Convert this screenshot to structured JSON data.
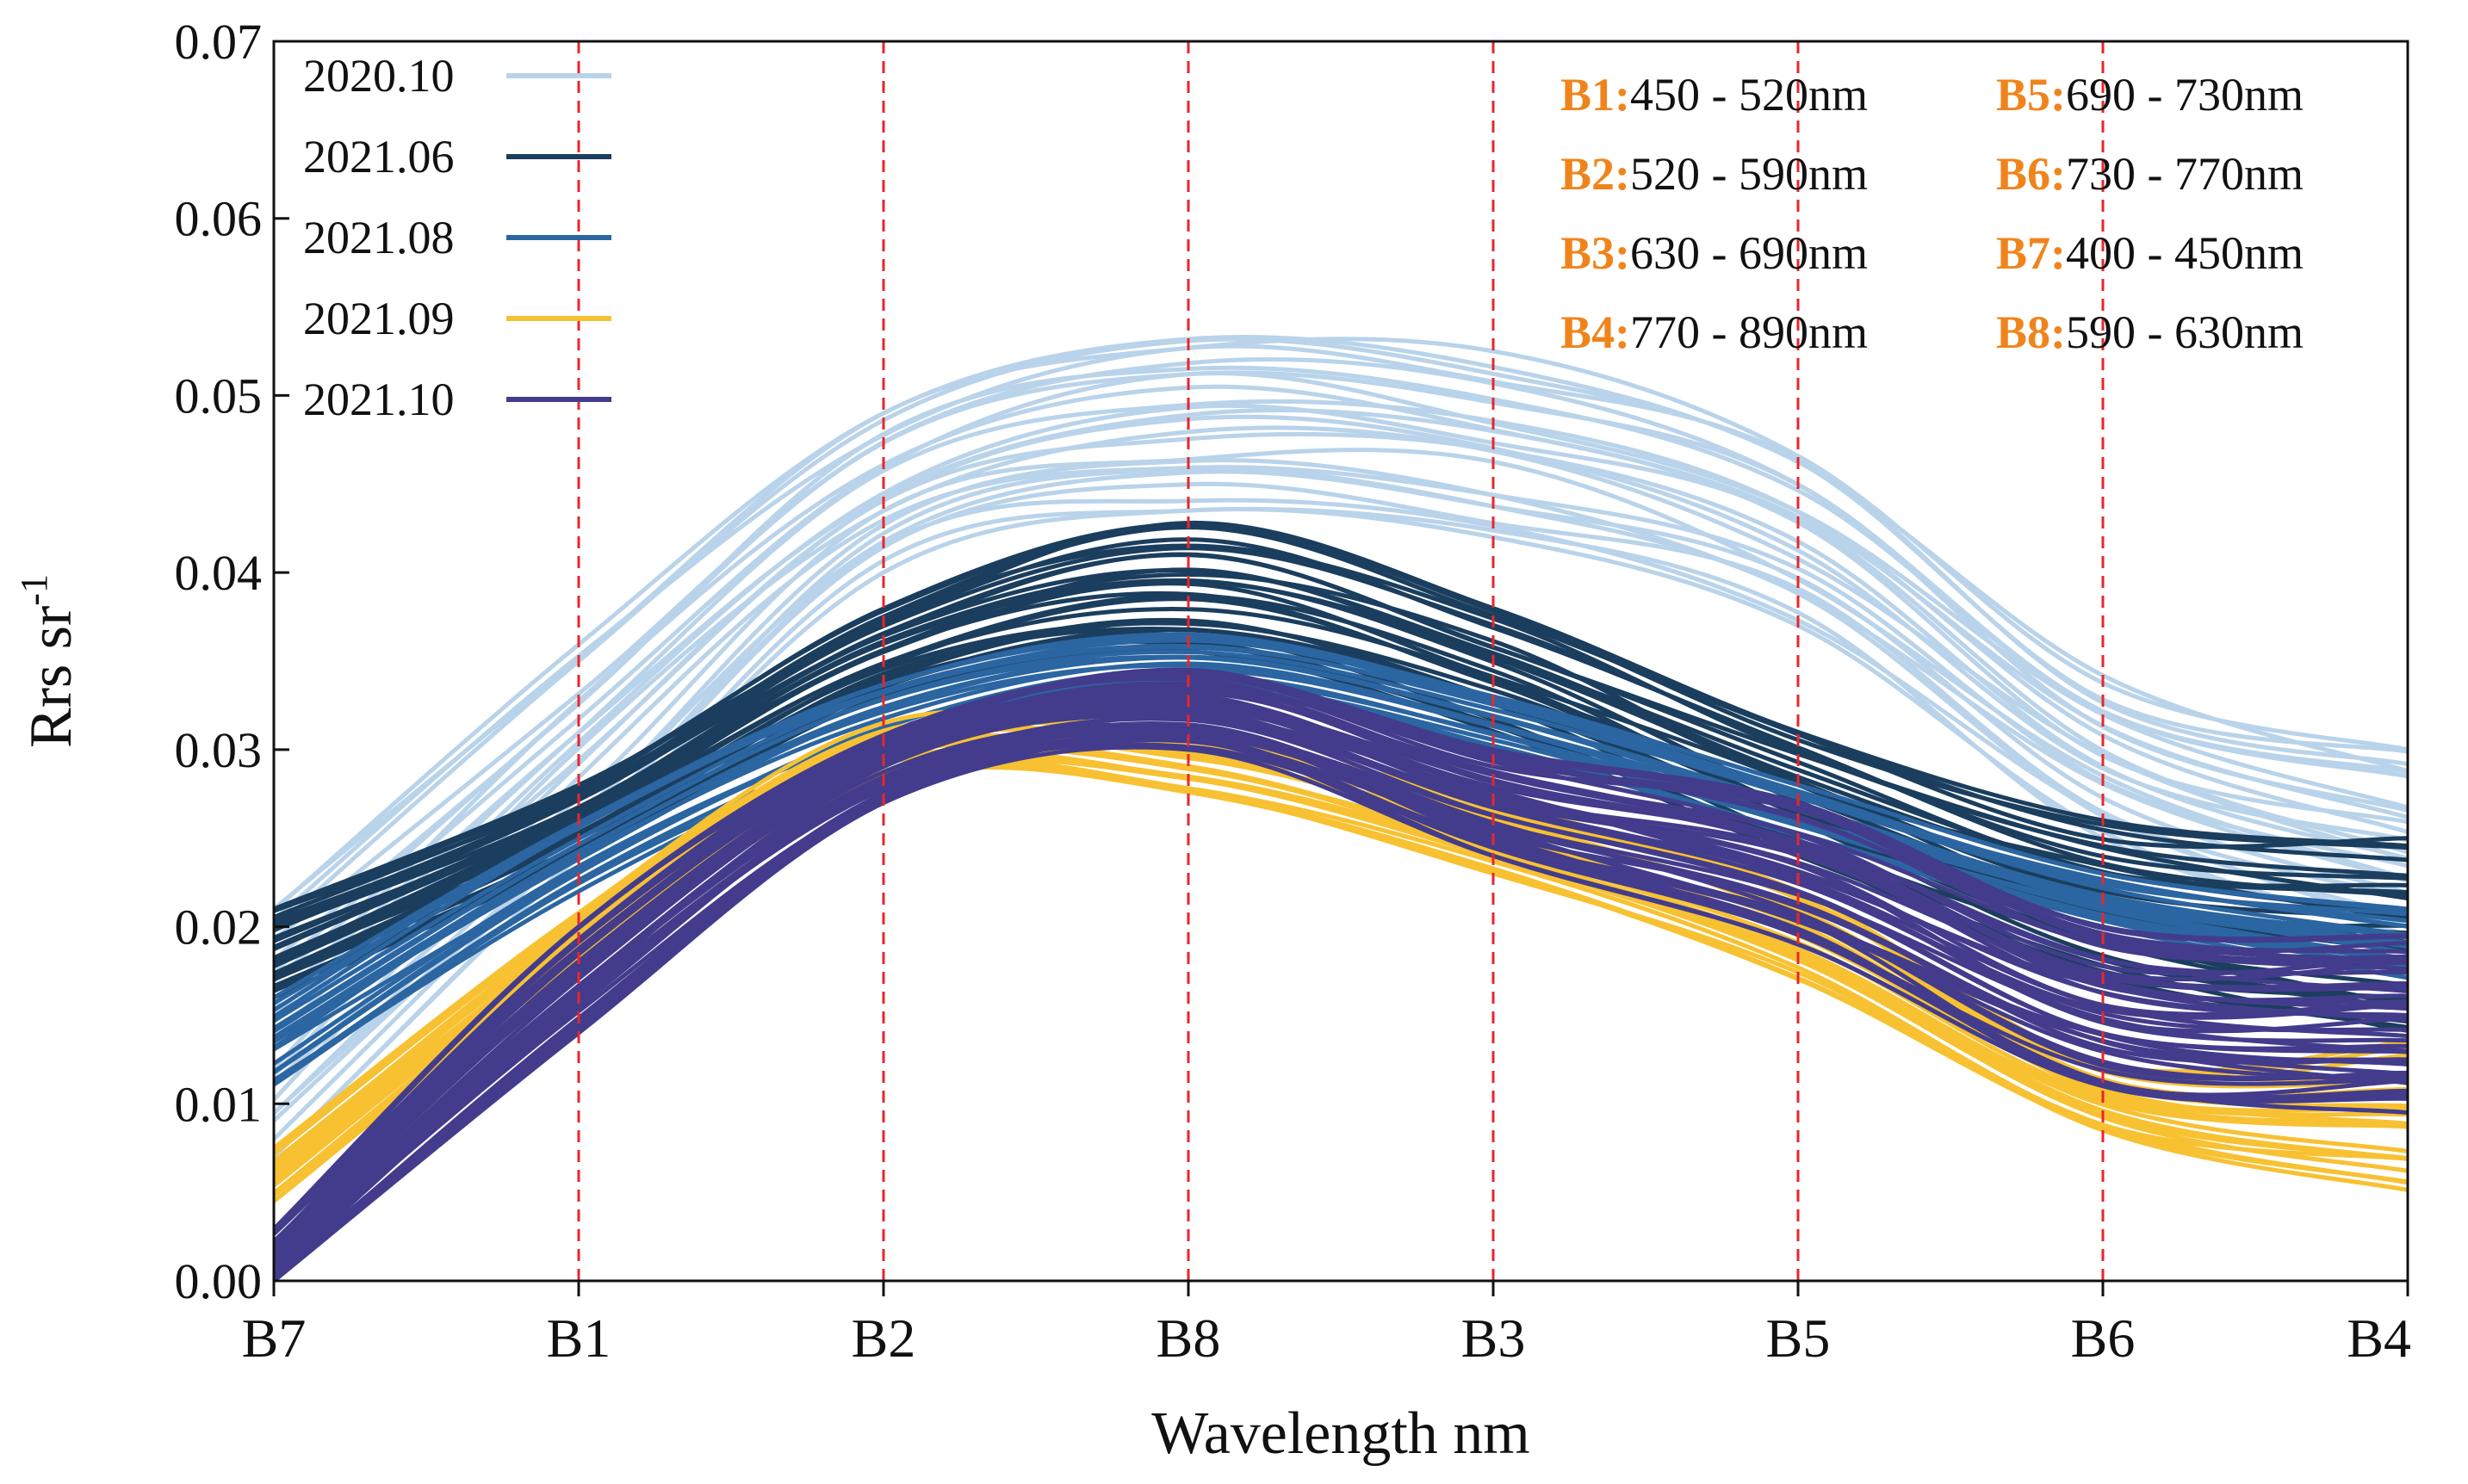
{
  "chart_data": {
    "type": "line",
    "title": "",
    "xlabel": "Wavelength nm",
    "ylabel": "Rrs sr",
    "ylabel_superscript": "-1",
    "categories": [
      "B7",
      "B1",
      "B2",
      "B8",
      "B3",
      "B5",
      "B6",
      "B4"
    ],
    "ylim": [
      0,
      0.07
    ],
    "yticks": [
      "0.00",
      "0.01",
      "0.02",
      "0.03",
      "0.04",
      "0.05",
      "0.06",
      "0.07"
    ],
    "grid": false,
    "reference_lines": [
      "B1",
      "B2",
      "B8",
      "B3",
      "B5",
      "B6"
    ],
    "legend_position": "top-left",
    "series": [
      {
        "name": "2020.10",
        "color": "#b9d3ea",
        "line_count": 24,
        "values_min": [
          0.007,
          0.024,
          0.04,
          0.0435,
          0.042,
          0.037,
          0.025,
          0.0195
        ],
        "values_max": [
          0.021,
          0.036,
          0.049,
          0.0535,
          0.0525,
          0.047,
          0.0345,
          0.03
        ]
      },
      {
        "name": "2021.06",
        "color": "#1b3e5e",
        "line_count": 30,
        "values_min": [
          0.016,
          0.024,
          0.033,
          0.0355,
          0.031,
          0.024,
          0.017,
          0.0135
        ],
        "values_max": [
          0.021,
          0.028,
          0.038,
          0.0428,
          0.038,
          0.031,
          0.026,
          0.025
        ]
      },
      {
        "name": "2021.08",
        "color": "#2b66a2",
        "line_count": 18,
        "values_min": [
          0.011,
          0.022,
          0.03,
          0.0335,
          0.03,
          0.025,
          0.02,
          0.017
        ],
        "values_max": [
          0.016,
          0.026,
          0.034,
          0.0365,
          0.033,
          0.028,
          0.023,
          0.021
        ]
      },
      {
        "name": "2021.09",
        "color": "#f7c132",
        "line_count": 22,
        "values_min": [
          0.0045,
          0.018,
          0.028,
          0.0275,
          0.023,
          0.017,
          0.0085,
          0.005
        ],
        "values_max": [
          0.0075,
          0.021,
          0.0315,
          0.031,
          0.027,
          0.022,
          0.0125,
          0.0135
        ]
      },
      {
        "name": "2021.10",
        "color": "#433c8c",
        "line_count": 45,
        "values_min": [
          0.0,
          0.014,
          0.027,
          0.03,
          0.024,
          0.019,
          0.011,
          0.0095
        ],
        "values_max": [
          0.003,
          0.02,
          0.031,
          0.0345,
          0.03,
          0.027,
          0.02,
          0.0195
        ]
      }
    ],
    "annotations": [
      {
        "band": "B1:",
        "range": "450 - 520nm"
      },
      {
        "band": "B2:",
        "range": "520 - 590nm"
      },
      {
        "band": "B3:",
        "range": "630 - 690nm"
      },
      {
        "band": "B4:",
        "range": "770 - 890nm"
      },
      {
        "band": "B5:",
        "range": "690 - 730nm"
      },
      {
        "band": "B6:",
        "range": "730 - 770nm"
      },
      {
        "band": "B7:",
        "range": "400 - 450nm"
      },
      {
        "band": "B8:",
        "range": "590 - 630nm"
      }
    ],
    "colors": {
      "reference_line": "#e8262c",
      "band_key": "#f0841c",
      "axis": "#111111"
    }
  }
}
